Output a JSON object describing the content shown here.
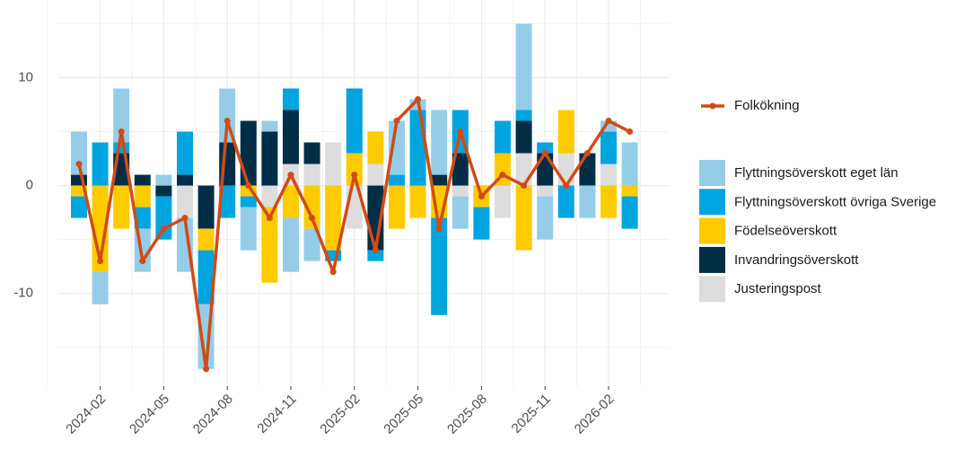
{
  "chart_data": {
    "type": "stacked-bar-line",
    "categories": [
      null,
      "2024-02",
      null,
      null,
      "2024-05",
      null,
      null,
      "2024-08",
      null,
      null,
      "2024-11",
      null,
      null,
      "2025-02",
      null,
      null,
      "2025-05",
      null,
      null,
      "2025-08",
      null,
      null,
      "2025-11",
      null,
      null,
      "2026-02",
      null
    ],
    "series": [
      {
        "name": "Flyttningsöverskott eget län",
        "color": "#95cde8",
        "values": [
          4,
          -3,
          5,
          -4,
          1,
          -5,
          -6,
          5,
          -4,
          1,
          -5,
          -3,
          0,
          0,
          0,
          5,
          1,
          6,
          -3,
          0,
          0,
          8,
          -4,
          0,
          -3,
          1,
          4
        ]
      },
      {
        "name": "Flyttningsöverskott övriga Sverige",
        "color": "#00a5df",
        "values": [
          -2,
          4,
          1,
          -2,
          -4,
          4,
          -5,
          -3,
          -1,
          0,
          2,
          0,
          -1,
          6,
          -1,
          1,
          7,
          -9,
          4,
          -3,
          3,
          1,
          1,
          -3,
          0,
          3,
          -3
        ]
      },
      {
        "name": "Födelseöverskott",
        "color": "#fecb00",
        "values": [
          -1,
          -8,
          -4,
          -2,
          0,
          0,
          -2,
          0,
          -1,
          -7,
          -3,
          -4,
          -6,
          3,
          3,
          -4,
          -3,
          -3,
          0,
          -2,
          3,
          -6,
          0,
          4,
          0,
          -3,
          -1
        ]
      },
      {
        "name": "Invandringsöverskott",
        "color": "#002e47",
        "values": [
          1,
          0,
          3,
          1,
          -1,
          1,
          -4,
          4,
          6,
          5,
          5,
          2,
          0,
          0,
          -6,
          0,
          0,
          1,
          3,
          0,
          0,
          3,
          3,
          0,
          3,
          0,
          0
        ]
      },
      {
        "name": "Justeringspost",
        "color": "#dddddd",
        "values": [
          0,
          0,
          0,
          0,
          0,
          -3,
          0,
          0,
          0,
          -2,
          2,
          2,
          4,
          -4,
          2,
          0,
          0,
          0,
          -1,
          0,
          -3,
          3,
          -1,
          3,
          0,
          2,
          0
        ]
      }
    ],
    "line": {
      "name": "Folkökning",
      "color": "#d24a15",
      "values": [
        2,
        -7,
        5,
        -7,
        -4,
        -3,
        -17,
        6,
        0,
        -3,
        1,
        -3,
        -8,
        1,
        -6,
        6,
        8,
        -4,
        5,
        -1,
        1,
        0,
        3,
        0,
        3,
        6,
        5
      ]
    },
    "ylim": [
      -18.6,
      17.2
    ],
    "yticks": [
      -10,
      0,
      10
    ],
    "yminor": [
      -15,
      -5,
      5,
      15
    ],
    "grid": true
  }
}
